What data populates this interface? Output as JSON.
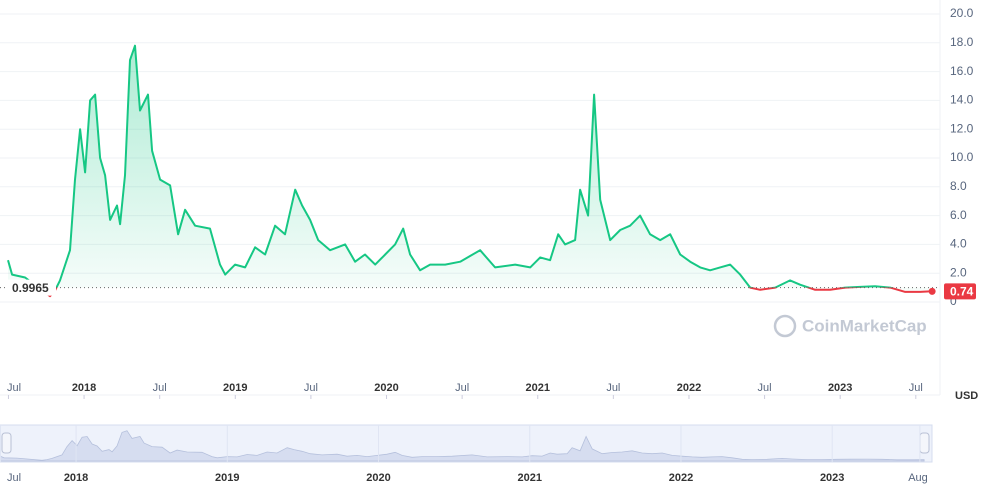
{
  "chart_data": {
    "type": "line",
    "watermark": "CoinMarketCap",
    "currency": "USD",
    "reference_price": 0.9965,
    "current_price": 0.74,
    "color": "#16c784",
    "below_color": "#ea3943",
    "grid": true,
    "x": [
      2017.497,
      2017.524,
      2017.61,
      2017.775,
      2017.808,
      2017.841,
      2017.907,
      2017.94,
      2017.974,
      2018.007,
      2018.04,
      2018.073,
      2018.106,
      2018.139,
      2018.172,
      2018.218,
      2018.238,
      2018.271,
      2018.304,
      2018.337,
      2018.37,
      2018.423,
      2018.45,
      2018.503,
      2018.569,
      2018.622,
      2018.668,
      2018.734,
      2018.833,
      2018.899,
      2018.933,
      2018.999,
      2019.065,
      2019.131,
      2019.197,
      2019.263,
      2019.329,
      2019.396,
      2019.442,
      2019.495,
      2019.548,
      2019.627,
      2019.726,
      2019.792,
      2019.858,
      2019.925,
      2019.991,
      2020.057,
      2020.11,
      2020.156,
      2020.222,
      2020.288,
      2020.388,
      2020.487,
      2020.619,
      2020.718,
      2020.851,
      2020.95,
      2021.016,
      2021.082,
      2021.135,
      2021.181,
      2021.247,
      2021.28,
      2021.333,
      2021.373,
      2021.413,
      2021.479,
      2021.545,
      2021.611,
      2021.677,
      2021.743,
      2021.81,
      2021.876,
      2021.942,
      2022.008,
      2022.074,
      2022.14,
      2022.206,
      2022.272,
      2022.339,
      2022.405,
      2022.471,
      2022.57,
      2022.669,
      2022.735,
      2022.835,
      2022.934,
      2023.033,
      2023.132,
      2023.231,
      2023.331,
      2023.43,
      2023.529,
      2023.608
    ],
    "series": [
      {
        "name": "Price",
        "values": [
          2.9,
          1.9,
          1.7,
          0.4,
          0.8,
          1.5,
          3.6,
          8.5,
          12,
          9,
          14,
          14.4,
          10,
          8.8,
          5.7,
          6.7,
          5.4,
          8.8,
          16.8,
          17.8,
          13.3,
          14.4,
          10.5,
          8.5,
          8.1,
          4.7,
          6.4,
          5.3,
          5.1,
          2.6,
          1.9,
          2.6,
          2.4,
          3.8,
          3.3,
          5.3,
          4.7,
          7.8,
          6.7,
          5.7,
          4.3,
          3.6,
          4.0,
          2.8,
          3.3,
          2.6,
          3.3,
          4.0,
          5.1,
          3.3,
          2.2,
          2.6,
          2.6,
          2.8,
          3.6,
          2.4,
          2.6,
          2.4,
          3.1,
          2.9,
          4.7,
          4.0,
          4.3,
          7.8,
          6.0,
          14.4,
          7.1,
          4.3,
          5.0,
          5.3,
          6.0,
          4.7,
          4.3,
          4.7,
          3.3,
          2.8,
          2.4,
          2.2,
          2.4,
          2.6,
          1.9,
          1.0,
          0.85,
          1.0,
          1.5,
          1.2,
          0.85,
          0.85,
          1.0,
          1.05,
          1.1,
          1.0,
          0.7,
          0.7,
          0.74
        ]
      }
    ],
    "xlim": [
      2017.497,
      2023.66
    ],
    "ylim": [
      0,
      20
    ],
    "yticks": [
      0,
      {
        "value": 2,
        "label": "2.0"
      },
      {
        "value": 4,
        "label": "4.0"
      },
      {
        "value": 6,
        "label": "6.0"
      },
      {
        "value": 8,
        "label": "8.0"
      },
      {
        "value": 10,
        "label": "10.0"
      },
      {
        "value": 12,
        "label": "12.0"
      },
      {
        "value": 14,
        "label": "14.0"
      },
      {
        "value": 16,
        "label": "16.0"
      },
      {
        "value": 18,
        "label": "18.0"
      },
      {
        "value": 20,
        "label": "20.0"
      }
    ],
    "xticks": [
      {
        "value": 2017.5,
        "label": "Jul"
      },
      {
        "value": 2018,
        "label": "2018"
      },
      {
        "value": 2018.5,
        "label": "Jul"
      },
      {
        "value": 2019,
        "label": "2019"
      },
      {
        "value": 2019.5,
        "label": "Jul"
      },
      {
        "value": 2020,
        "label": "2020"
      },
      {
        "value": 2020.5,
        "label": "Jul"
      },
      {
        "value": 2021,
        "label": "2021"
      },
      {
        "value": 2021.5,
        "label": "Jul"
      },
      {
        "value": 2022,
        "label": "2022"
      },
      {
        "value": 2022.5,
        "label": "Jul"
      },
      {
        "value": 2023,
        "label": "2023"
      },
      {
        "value": 2023.5,
        "label": "Jul"
      }
    ],
    "navigator_xticks": [
      {
        "value": 2017.5,
        "label": "Jul"
      },
      {
        "value": 2018,
        "label": "2018"
      },
      {
        "value": 2019,
        "label": "2019"
      },
      {
        "value": 2020,
        "label": "2020"
      },
      {
        "value": 2021,
        "label": "2021"
      },
      {
        "value": 2022,
        "label": "2022"
      },
      {
        "value": 2023,
        "label": "2023"
      },
      {
        "value": 2023.58,
        "label": "Aug"
      }
    ]
  }
}
